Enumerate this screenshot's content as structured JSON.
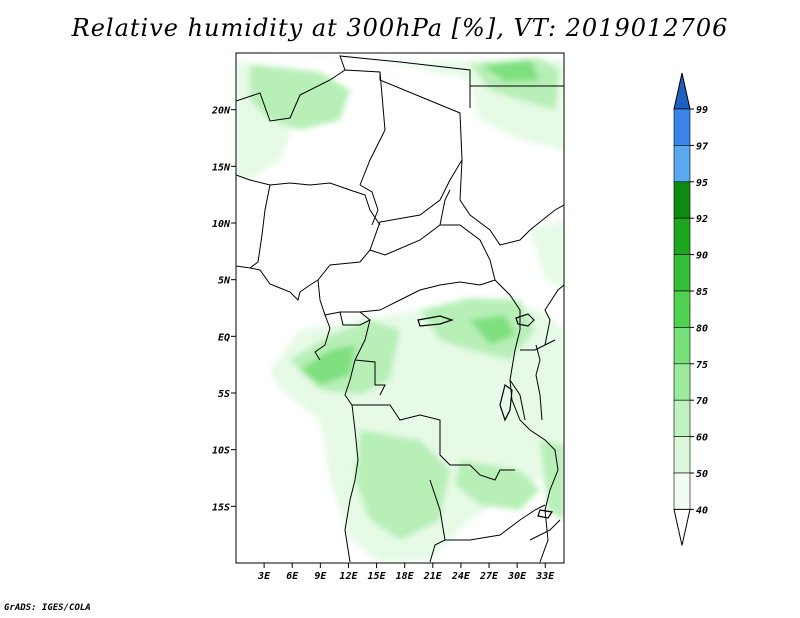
{
  "title": "Relative humidity at 300hPa [%], VT: 2019012706",
  "footer": "GrADS: IGES/COLA",
  "map": {
    "lon_range": [
      0,
      35
    ],
    "lat_range": [
      -20,
      25
    ],
    "lat_labels": [
      {
        "lat": 20,
        "text": "20N"
      },
      {
        "lat": 15,
        "text": "15N"
      },
      {
        "lat": 10,
        "text": "10N"
      },
      {
        "lat": 5,
        "text": "5N"
      },
      {
        "lat": 0,
        "text": "EQ"
      },
      {
        "lat": -5,
        "text": "5S"
      },
      {
        "lat": -10,
        "text": "10S"
      },
      {
        "lat": -15,
        "text": "15S"
      }
    ],
    "lon_labels": [
      {
        "lon": 3,
        "text": "3E"
      },
      {
        "lon": 6,
        "text": "6E"
      },
      {
        "lon": 9,
        "text": "9E"
      },
      {
        "lon": 12,
        "text": "12E"
      },
      {
        "lon": 15,
        "text": "15E"
      },
      {
        "lon": 18,
        "text": "18E"
      },
      {
        "lon": 21,
        "text": "21E"
      },
      {
        "lon": 24,
        "text": "24E"
      },
      {
        "lon": 27,
        "text": "27E"
      },
      {
        "lon": 30,
        "text": "30E"
      },
      {
        "lon": 33,
        "text": "33E"
      }
    ]
  },
  "colorbar": {
    "labels": [
      "99",
      "97",
      "95",
      "92",
      "90",
      "85",
      "80",
      "75",
      "70",
      "60",
      "50",
      "40"
    ],
    "colors": [
      "#2f6fd6",
      "#3a86e8",
      "#5aa9f0",
      "#0c8a12",
      "#1ea51e",
      "#34bf34",
      "#50d250",
      "#78e078",
      "#9ceb9c",
      "#bff2bf",
      "#dcf8dc",
      "#f0fdf0"
    ],
    "top_arrow_color": "#1f5fc0",
    "bottom_arrow_color": "#ffffff"
  },
  "humidity_color_light": "#e6fae6",
  "humidity_color_mid": "#b7efb7",
  "humidity_color_dark": "#7fe07f"
}
